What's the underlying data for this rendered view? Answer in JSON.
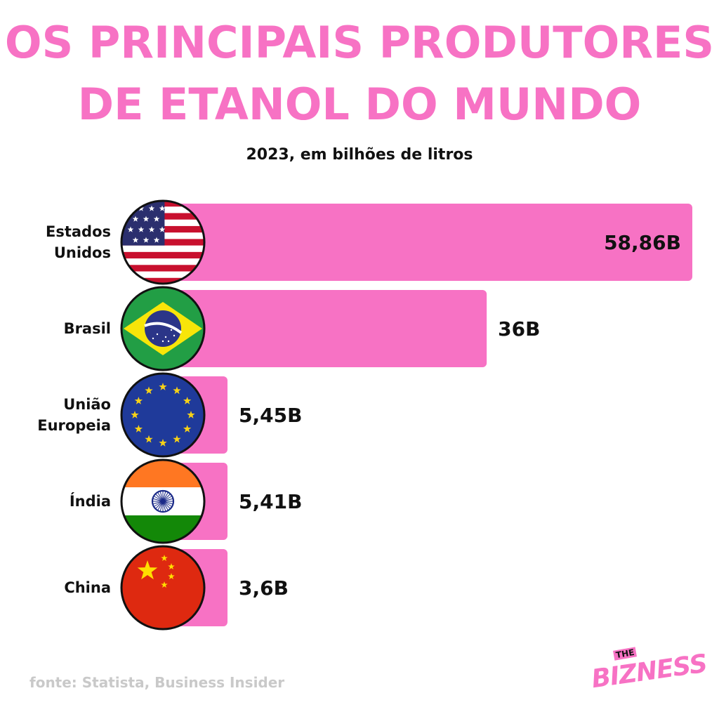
{
  "header": {
    "title_line1": "OS PRINCIPAIS PRODUTORES",
    "title_line2": "DE ETANOL DO MUNDO",
    "subtitle": "2023, em bilhões de litros"
  },
  "chart_data": {
    "type": "bar",
    "orientation": "horizontal",
    "title": "OS PRINCIPAIS PRODUTORES DE ETANOL DO MUNDO",
    "subtitle": "2023, em bilhões de litros",
    "categories": [
      {
        "label_lines": [
          "Estados",
          "Unidos"
        ],
        "flag": "usa-flag-icon"
      },
      {
        "label_lines": [
          "Brasil"
        ],
        "flag": "brazil-flag-icon"
      },
      {
        "label_lines": [
          "União",
          "Europeia"
        ],
        "flag": "eu-flag-icon"
      },
      {
        "label_lines": [
          "Índia"
        ],
        "flag": "india-flag-icon"
      },
      {
        "label_lines": [
          "China"
        ],
        "flag": "china-flag-icon"
      }
    ],
    "values": [
      58.86,
      36,
      5.45,
      5.41,
      3.6
    ],
    "value_labels": [
      "58,86B",
      "36B",
      "5,45B",
      "5,41B",
      "3,6B"
    ],
    "bar_color": "#f772c4",
    "grid": false,
    "legend": "none"
  },
  "footer": {
    "source": "fonte: Statista, Business Insider",
    "logo_small": "THE",
    "logo_big": "BIZNESS"
  },
  "colors": {
    "accent": "#f772c4",
    "text": "#111111",
    "source_text": "#c9c9c9"
  }
}
